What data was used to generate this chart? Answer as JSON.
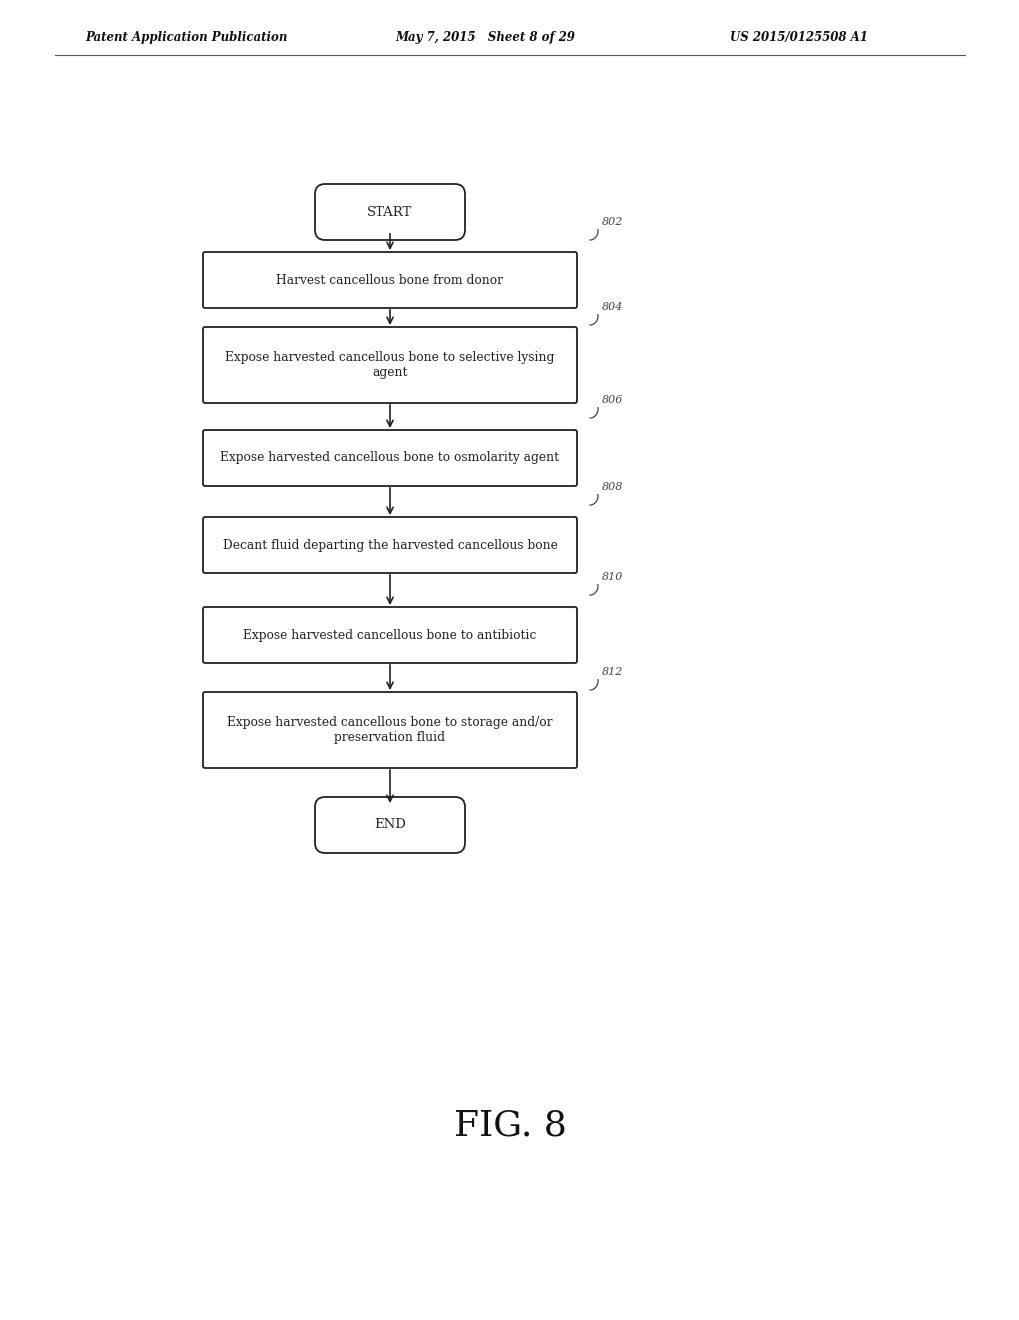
{
  "bg_color": "#ffffff",
  "header_left": "Patent Application Publication",
  "header_mid": "May 7, 2015   Sheet 8 of 29",
  "header_right": "US 2015/0125508 A1",
  "fig_label": "FIG. 8",
  "start_label": "START",
  "end_label": "END",
  "boxes": [
    {
      "id": "802",
      "text": "Harvest cancellous bone from donor",
      "tall": false
    },
    {
      "id": "804",
      "text": "Expose harvested cancellous bone to selective lysing\nagent",
      "tall": true
    },
    {
      "id": "806",
      "text": "Expose harvested cancellous bone to osmolarity agent",
      "tall": false
    },
    {
      "id": "808",
      "text": "Decant fluid departing the harvested cancellous bone",
      "tall": false
    },
    {
      "id": "810",
      "text": "Expose harvested cancellous bone to antibiotic",
      "tall": false
    },
    {
      "id": "812",
      "text": "Expose harvested cancellous bone to storage and/or\npreservation fluid",
      "tall": true
    }
  ],
  "box_color": "#ffffff",
  "box_edge_color": "#222222",
  "text_color": "#222222",
  "arrow_color": "#222222",
  "ref_color": "#444444",
  "header_line_color": "#555555",
  "fig_label_color": "#111111"
}
